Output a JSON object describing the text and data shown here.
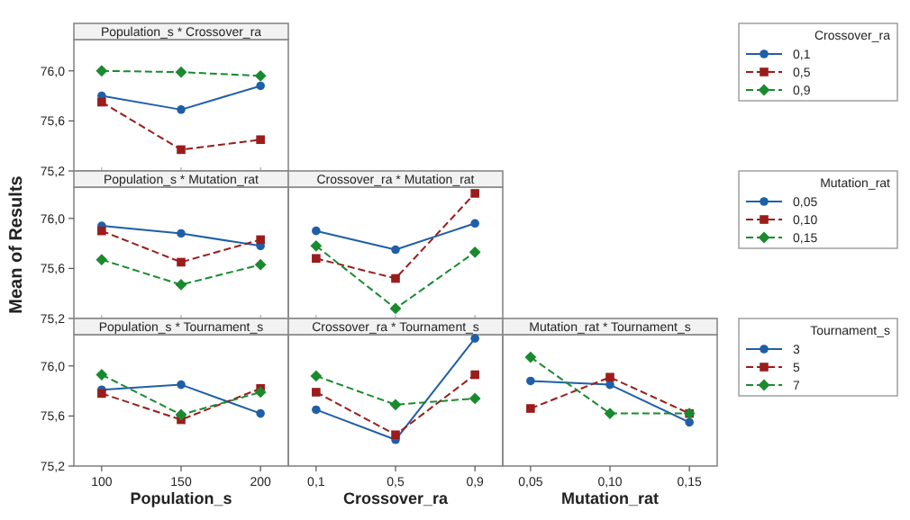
{
  "chart_data": [
    {
      "type": "line",
      "title": "Population_s * Crossover_ra",
      "categories": [
        "100",
        "150",
        "200"
      ],
      "ylim": [
        75.2,
        76.25
      ],
      "yticks": [
        {
          "value": 75.2,
          "label": "75,2"
        },
        {
          "value": 75.6,
          "label": "75,6"
        },
        {
          "value": 76.0,
          "label": "76,0"
        }
      ],
      "tick_labels": "y",
      "legend": "right",
      "legend_title": "Crossover_ra",
      "series": [
        {
          "name": "0,1",
          "color": "#1f5fa8",
          "marker": "circle",
          "line_style": "solid",
          "values": [
            75.8,
            75.69,
            75.88
          ]
        },
        {
          "name": "0,5",
          "color": "#9b1c1c",
          "marker": "square",
          "line_style": "dashed",
          "values": [
            75.75,
            75.37,
            75.45
          ]
        },
        {
          "name": "0,9",
          "color": "#1a8a2e",
          "marker": "diamond",
          "line_style": "dashed",
          "values": [
            76.0,
            75.99,
            75.96
          ]
        }
      ]
    },
    {
      "type": "line",
      "title": "Population_s * Mutation_rat",
      "ylabel": "Mean of Results",
      "categories": [
        "100",
        "150",
        "200"
      ],
      "ylim": [
        75.2,
        76.25
      ],
      "yticks": [
        {
          "value": 75.2,
          "label": "75,2"
        },
        {
          "value": 75.6,
          "label": "75,6"
        },
        {
          "value": 76.0,
          "label": "76,0"
        }
      ],
      "tick_labels": "y",
      "series": [
        {
          "color": "#1f5fa8",
          "marker": "circle",
          "line_style": "solid",
          "values": [
            75.94,
            75.88,
            75.78
          ]
        },
        {
          "color": "#9b1c1c",
          "marker": "square",
          "line_style": "dashed",
          "values": [
            75.9,
            75.65,
            75.83
          ]
        },
        {
          "color": "#1a8a2e",
          "marker": "diamond",
          "line_style": "dashed",
          "values": [
            75.67,
            75.47,
            75.63
          ]
        }
      ]
    },
    {
      "type": "line",
      "title": "Crossover_ra * Mutation_rat",
      "categories": [
        "0,1",
        "0,5",
        "0,9"
      ],
      "ylim": [
        75.2,
        76.25
      ],
      "tick_labels": false,
      "legend": "right",
      "legend_title": "Mutation_rat",
      "series": [
        {
          "name": "0,05",
          "color": "#1f5fa8",
          "marker": "circle",
          "line_style": "solid",
          "values": [
            75.9,
            75.75,
            75.96
          ]
        },
        {
          "name": "0,10",
          "color": "#9b1c1c",
          "marker": "square",
          "line_style": "dashed",
          "values": [
            75.68,
            75.52,
            76.2
          ]
        },
        {
          "name": "0,15",
          "color": "#1a8a2e",
          "marker": "diamond",
          "line_style": "dashed",
          "values": [
            75.78,
            75.28,
            75.73
          ]
        }
      ]
    },
    {
      "type": "line",
      "title": "Population_s * Tournament_s",
      "xlabel": "Population_s",
      "categories": [
        "100",
        "150",
        "200"
      ],
      "ylim": [
        75.2,
        76.25
      ],
      "yticks": [
        {
          "value": 75.2,
          "label": "75,2"
        },
        {
          "value": 75.6,
          "label": "75,6"
        },
        {
          "value": 76.0,
          "label": "76,0"
        }
      ],
      "series": [
        {
          "color": "#1f5fa8",
          "marker": "circle",
          "line_style": "solid",
          "values": [
            75.81,
            75.85,
            75.62
          ]
        },
        {
          "color": "#9b1c1c",
          "marker": "square",
          "line_style": "dashed",
          "values": [
            75.78,
            75.57,
            75.82
          ]
        },
        {
          "color": "#1a8a2e",
          "marker": "diamond",
          "line_style": "dashed",
          "values": [
            75.93,
            75.61,
            75.79
          ]
        }
      ]
    },
    {
      "type": "line",
      "title": "Crossover_ra * Tournament_s",
      "xlabel": "Crossover_ra",
      "categories": [
        "0,1",
        "0,5",
        "0,9"
      ],
      "ylim": [
        75.2,
        76.25
      ],
      "tick_labels": "x",
      "series": [
        {
          "color": "#1f5fa8",
          "marker": "circle",
          "line_style": "solid",
          "values": [
            75.65,
            75.41,
            76.22
          ]
        },
        {
          "color": "#9b1c1c",
          "marker": "square",
          "line_style": "dashed",
          "values": [
            75.79,
            75.45,
            75.93
          ]
        },
        {
          "color": "#1a8a2e",
          "marker": "diamond",
          "line_style": "dashed",
          "values": [
            75.92,
            75.69,
            75.74
          ]
        }
      ]
    },
    {
      "type": "line",
      "title": "Mutation_rat * Tournament_s",
      "xlabel": "Mutation_rat",
      "categories": [
        "0,05",
        "0,10",
        "0,15"
      ],
      "ylim": [
        75.2,
        76.25
      ],
      "tick_labels": "x",
      "legend": "right",
      "legend_title": "Tournament_s",
      "series": [
        {
          "name": "3",
          "color": "#1f5fa8",
          "marker": "circle",
          "line_style": "solid",
          "values": [
            75.88,
            75.85,
            75.55
          ]
        },
        {
          "name": "5",
          "color": "#9b1c1c",
          "marker": "square",
          "line_style": "dashed",
          "values": [
            75.66,
            75.91,
            75.62
          ]
        },
        {
          "name": "7",
          "color": "#1a8a2e",
          "marker": "diamond",
          "line_style": "dashed",
          "values": [
            76.07,
            75.62,
            75.62
          ]
        }
      ]
    }
  ]
}
